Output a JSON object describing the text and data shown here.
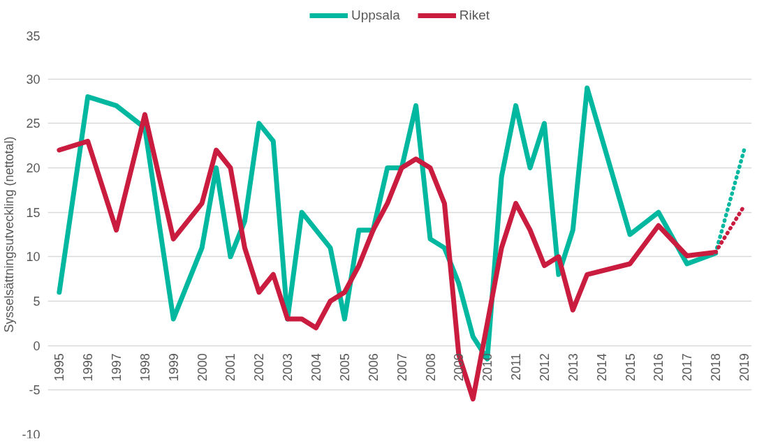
{
  "chart_data": {
    "type": "line",
    "ylabel": "Sysselsättningsutveckling (nettotal)",
    "xlim": [
      1994.6,
      2019.27
    ],
    "xticks": [
      1995,
      1996,
      1997,
      1998,
      1999,
      2000,
      2001,
      2002,
      2003,
      2004,
      2005,
      2006,
      2007,
      2008,
      2009,
      2010,
      2011,
      2012,
      2013,
      2014,
      2015,
      2016,
      2017,
      2018,
      2019
    ],
    "ylim": [
      -10,
      35
    ],
    "yticks": [
      -10,
      -5,
      0,
      5,
      10,
      15,
      20,
      25,
      30,
      35
    ],
    "grid": "y",
    "legend": "top",
    "marker": "none",
    "line_style": "solid",
    "series": [
      {
        "name": "Uppsala",
        "color": "#00b8a0",
        "x": [
          1995,
          1996,
          1997,
          1998,
          1999,
          2000,
          2000.5,
          2001,
          2001.5,
          2002,
          2002.5,
          2003,
          2003.5,
          2004.5,
          2005,
          2005.5,
          2006,
          2006.5,
          2007,
          2007.5,
          2008,
          2008.5,
          2009,
          2009.5,
          2010,
          2010.5,
          2011,
          2011.5,
          2012,
          2012.5,
          2013,
          2013.5,
          2015,
          2016,
          2017,
          2018
        ],
        "values": [
          6,
          28,
          27,
          24.5,
          3,
          11,
          20,
          10,
          14,
          25,
          23,
          3,
          15,
          11,
          3,
          13,
          13,
          20,
          20,
          27,
          12,
          11,
          7,
          1,
          -1.5,
          19,
          27,
          20,
          25,
          8,
          13,
          29,
          12.5,
          15,
          9.2,
          10.4
        ]
      },
      {
        "name": "Riket",
        "color": "#c91c3f",
        "x": [
          1995,
          1996,
          1997,
          1998,
          1999,
          2000,
          2000.5,
          2001,
          2001.5,
          2002,
          2002.5,
          2003,
          2003.5,
          2004,
          2004.5,
          2005,
          2005.5,
          2006,
          2006.5,
          2007,
          2007.5,
          2008,
          2008.5,
          2009,
          2009.5,
          2010.5,
          2011,
          2011.5,
          2012,
          2012.5,
          2013,
          2013.5,
          2015,
          2016,
          2017,
          2018
        ],
        "values": [
          22,
          23,
          13,
          26,
          12,
          16,
          22,
          20,
          11,
          6,
          8,
          3,
          3,
          2,
          5,
          6,
          9,
          13,
          16,
          20,
          21,
          20,
          16,
          -1,
          -6,
          11,
          16,
          13,
          9,
          10,
          4,
          8,
          9.2,
          13.5,
          10.1,
          10.5
        ]
      },
      {
        "color": "#00b8a0",
        "line_style": "dotted",
        "x": [
          2018,
          2019
        ],
        "values": [
          10.4,
          22
        ]
      },
      {
        "color": "#c91c3f",
        "line_style": "dotted",
        "x": [
          2018,
          2019
        ],
        "values": [
          10.5,
          15.7
        ]
      }
    ]
  }
}
